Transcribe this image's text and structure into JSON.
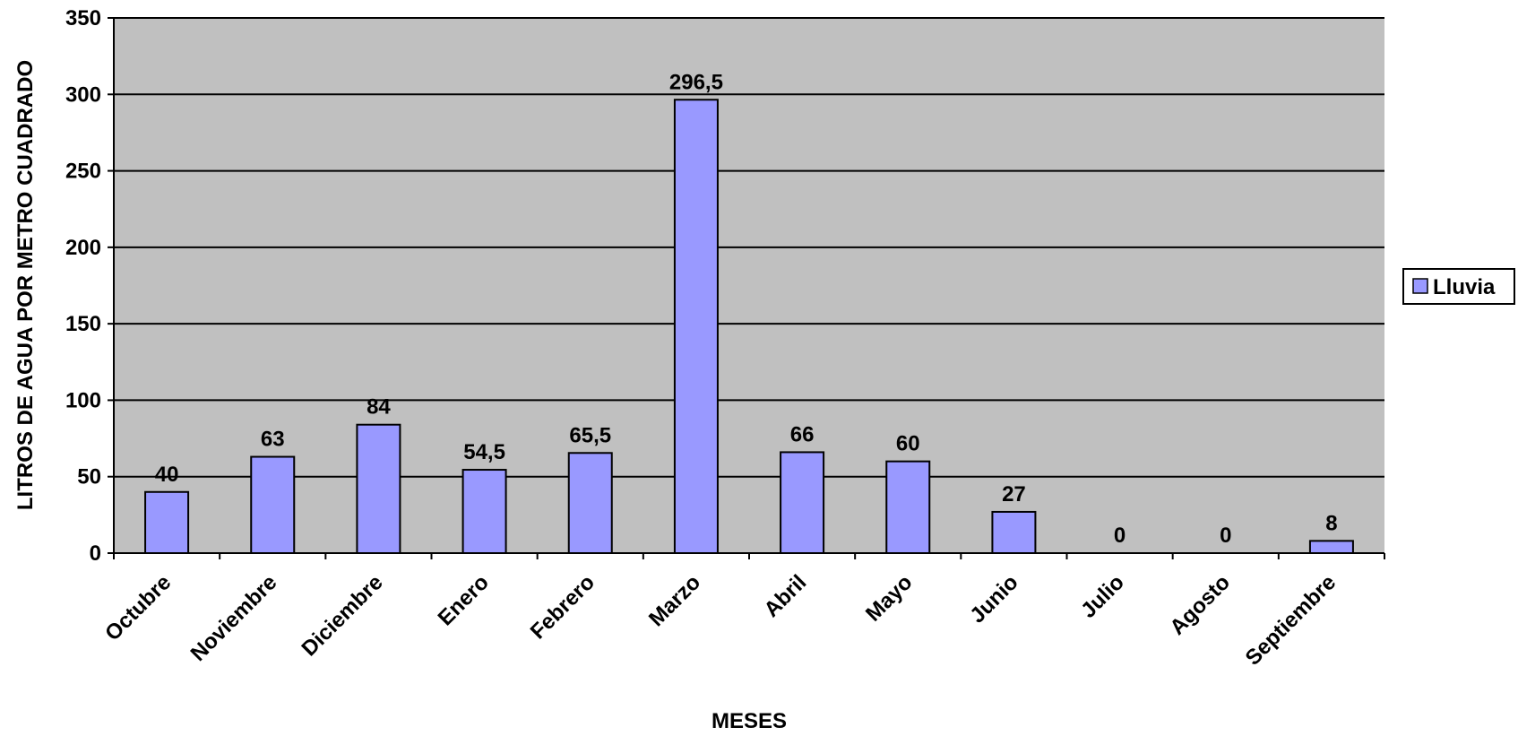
{
  "chart_data": {
    "type": "bar",
    "categories": [
      "Octubre",
      "Noviembre",
      "Diciembre",
      "Enero",
      "Febrero",
      "Marzo",
      "Abril",
      "Mayo",
      "Junio",
      "Julio",
      "Agosto",
      "Septiembre"
    ],
    "series": [
      {
        "name": "Lluvia",
        "values": [
          40,
          63,
          84,
          54.5,
          65.5,
          296.5,
          66,
          60,
          27,
          0,
          0,
          8
        ],
        "labels": [
          "40",
          "63",
          "84",
          "54,5",
          "65,5",
          "296,5",
          "66",
          "60",
          "27",
          "0",
          "0",
          "8"
        ]
      }
    ],
    "xlabel": "MESES",
    "ylabel": "LITROS DE AGUA POR METRO CUADRADO",
    "ylim": [
      0,
      350
    ],
    "yticks": [
      0,
      50,
      100,
      150,
      200,
      250,
      300,
      350
    ],
    "grid": true,
    "legend_position": "right",
    "colors": {
      "plot_background": "#c0c0c0",
      "bar_fill": "#9999ff",
      "bar_stroke": "#000000",
      "gridline": "#000000"
    }
  }
}
